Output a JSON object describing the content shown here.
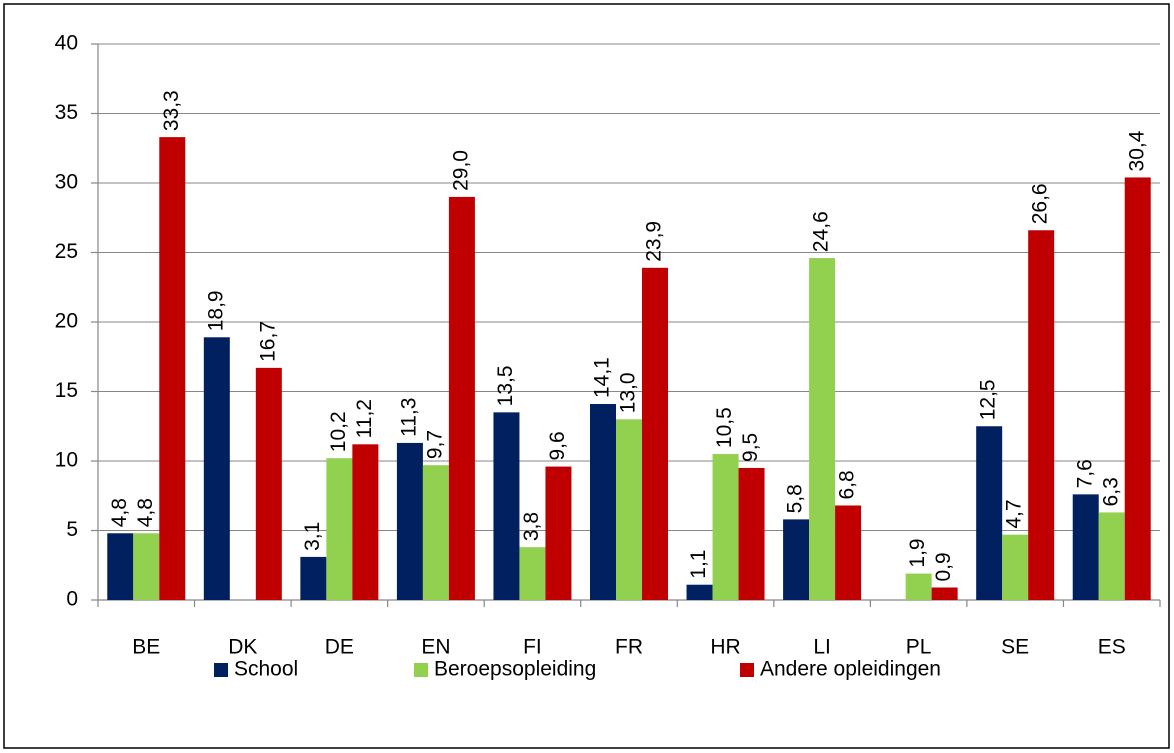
{
  "chart_data": {
    "type": "bar",
    "categories": [
      "BE",
      "DK",
      "DE",
      "EN",
      "FI",
      "FR",
      "HR",
      "LI",
      "PL",
      "SE",
      "ES"
    ],
    "series": [
      {
        "name": "School",
        "color": "#002060",
        "values": [
          4.8,
          18.9,
          3.1,
          11.3,
          13.5,
          14.1,
          1.1,
          5.8,
          null,
          12.5,
          7.6
        ],
        "value_labels": [
          "4,8",
          "18,9",
          "3,1",
          "11,3",
          "13,5",
          "14,1",
          "1,1",
          "5,8",
          null,
          "12,5",
          "7,6"
        ]
      },
      {
        "name": "Beroepsopleiding",
        "color": "#92d050",
        "values": [
          4.8,
          null,
          10.2,
          9.7,
          3.8,
          13.0,
          10.5,
          24.6,
          1.9,
          4.7,
          6.3
        ],
        "value_labels": [
          "4,8",
          null,
          "10,2",
          "9,7",
          "3,8",
          "13,0",
          "10,5",
          "24,6",
          "1,9",
          "4,7",
          "6,3"
        ]
      },
      {
        "name": "Andere opleidingen",
        "color": "#c00000",
        "values": [
          33.3,
          16.7,
          11.2,
          29.0,
          9.6,
          23.9,
          9.5,
          6.8,
          0.9,
          26.6,
          30.4
        ],
        "value_labels": [
          "33,3",
          "16,7",
          "11,2",
          "29,0",
          "9,6",
          "23,9",
          "9,5",
          "6,8",
          "0,9",
          "26,6",
          "30,4"
        ]
      }
    ],
    "ylim": [
      0,
      40
    ],
    "yticks": [
      0,
      5,
      10,
      15,
      20,
      25,
      30,
      35,
      40
    ],
    "grid": true,
    "legend": "bottom"
  }
}
